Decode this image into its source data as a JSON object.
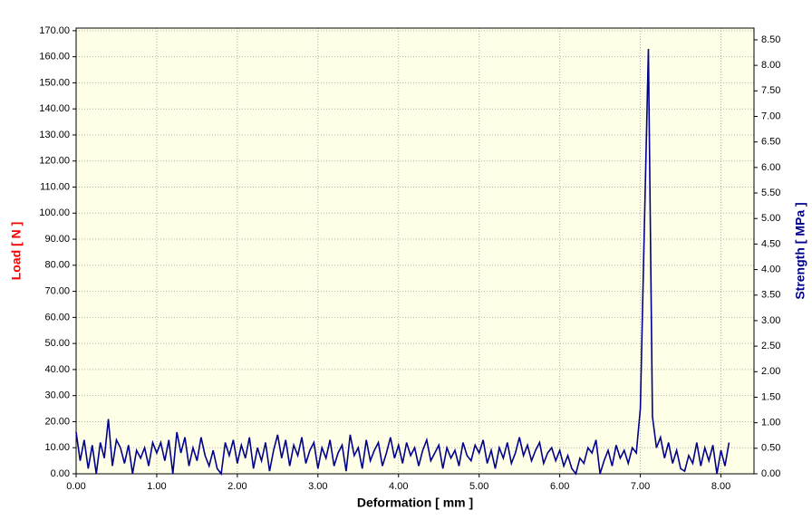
{
  "chart_data": {
    "type": "line",
    "xlabel": "Deformation [ mm ]",
    "ylabel": "Load [ N ]",
    "y2label": "Strength [ MPa ]",
    "color": "#00008b",
    "grid": true,
    "xlim": [
      0,
      8.41
    ],
    "ylim": [
      0,
      171
    ],
    "y2lim": [
      0,
      8.73
    ],
    "xticks": [
      {
        "value": 0,
        "label": "0.00"
      },
      {
        "value": 1,
        "label": "1.00"
      },
      {
        "value": 2,
        "label": "2.00"
      },
      {
        "value": 3,
        "label": "3.00"
      },
      {
        "value": 4,
        "label": "4.00"
      },
      {
        "value": 5,
        "label": "5.00"
      },
      {
        "value": 6,
        "label": "6.00"
      },
      {
        "value": 7,
        "label": "7.00"
      },
      {
        "value": 8,
        "label": "8.00"
      }
    ],
    "yticks": [
      {
        "value": 0,
        "label": "0.00"
      },
      {
        "value": 10,
        "label": "10.00"
      },
      {
        "value": 20,
        "label": "20.00"
      },
      {
        "value": 30,
        "label": "30.00"
      },
      {
        "value": 40,
        "label": "40.00"
      },
      {
        "value": 50,
        "label": "50.00"
      },
      {
        "value": 60,
        "label": "60.00"
      },
      {
        "value": 70,
        "label": "70.00"
      },
      {
        "value": 80,
        "label": "80.00"
      },
      {
        "value": 90,
        "label": "90.00"
      },
      {
        "value": 100,
        "label": "100.00"
      },
      {
        "value": 110,
        "label": "110.00"
      },
      {
        "value": 120,
        "label": "120.00"
      },
      {
        "value": 130,
        "label": "130.00"
      },
      {
        "value": 140,
        "label": "140.00"
      },
      {
        "value": 150,
        "label": "150.00"
      },
      {
        "value": 160,
        "label": "160.00"
      },
      {
        "value": 170,
        "label": "170.00"
      }
    ],
    "y2ticks": [
      {
        "value": 0,
        "label": "0.00"
      },
      {
        "value": 0.5,
        "label": "0.50"
      },
      {
        "value": 1,
        "label": "1.00"
      },
      {
        "value": 1.5,
        "label": "1.50"
      },
      {
        "value": 2,
        "label": "2.00"
      },
      {
        "value": 2.5,
        "label": "2.50"
      },
      {
        "value": 3,
        "label": "3.00"
      },
      {
        "value": 3.5,
        "label": "3.50"
      },
      {
        "value": 4,
        "label": "4.00"
      },
      {
        "value": 4.5,
        "label": "4.50"
      },
      {
        "value": 5,
        "label": "5.00"
      },
      {
        "value": 5.5,
        "label": "5.50"
      },
      {
        "value": 6,
        "label": "6.00"
      },
      {
        "value": 6.5,
        "label": "6.50"
      },
      {
        "value": 7,
        "label": "7.00"
      },
      {
        "value": 7.5,
        "label": "7.50"
      },
      {
        "value": 8,
        "label": "8.00"
      },
      {
        "value": 8.5,
        "label": "8.50"
      }
    ],
    "x": [
      0,
      0.05,
      0.1,
      0.15,
      0.2,
      0.25,
      0.3,
      0.35,
      0.4,
      0.45,
      0.5,
      0.55,
      0.6,
      0.65,
      0.7,
      0.75,
      0.8,
      0.85,
      0.9,
      0.95,
      1,
      1.05,
      1.1,
      1.15,
      1.2,
      1.25,
      1.3,
      1.35,
      1.4,
      1.45,
      1.5,
      1.55,
      1.6,
      1.65,
      1.7,
      1.75,
      1.8,
      1.85,
      1.9,
      1.95,
      2,
      2.05,
      2.1,
      2.15,
      2.2,
      2.25,
      2.3,
      2.35,
      2.4,
      2.45,
      2.5,
      2.55,
      2.6,
      2.65,
      2.7,
      2.75,
      2.8,
      2.85,
      2.9,
      2.95,
      3,
      3.05,
      3.1,
      3.15,
      3.2,
      3.25,
      3.3,
      3.35,
      3.4,
      3.45,
      3.5,
      3.55,
      3.6,
      3.65,
      3.7,
      3.75,
      3.8,
      3.85,
      3.9,
      3.95,
      4,
      4.05,
      4.1,
      4.15,
      4.2,
      4.25,
      4.3,
      4.35,
      4.4,
      4.45,
      4.5,
      4.55,
      4.6,
      4.65,
      4.7,
      4.75,
      4.8,
      4.85,
      4.9,
      4.95,
      5,
      5.05,
      5.1,
      5.15,
      5.2,
      5.25,
      5.3,
      5.35,
      5.4,
      5.45,
      5.5,
      5.55,
      5.6,
      5.65,
      5.7,
      5.75,
      5.8,
      5.85,
      5.9,
      5.95,
      6,
      6.05,
      6.1,
      6.15,
      6.2,
      6.25,
      6.3,
      6.35,
      6.4,
      6.45,
      6.5,
      6.55,
      6.6,
      6.65,
      6.7,
      6.75,
      6.8,
      6.85,
      6.9,
      6.95,
      7,
      7.05,
      7.1,
      7.15,
      7.2,
      7.25,
      7.3,
      7.35,
      7.4,
      7.45,
      7.5,
      7.55,
      7.6,
      7.65,
      7.7,
      7.75,
      7.8,
      7.85,
      7.9,
      7.95,
      8,
      8.05,
      8.1
    ],
    "values": [
      16,
      5,
      13,
      2,
      11,
      0,
      12,
      6,
      21,
      3,
      13,
      10,
      4,
      11,
      0,
      9,
      6,
      10,
      3,
      12,
      8,
      12,
      5,
      13,
      0,
      16,
      8,
      14,
      3,
      10,
      5,
      14,
      7,
      3,
      9,
      2,
      0,
      12,
      7,
      13,
      4,
      11,
      6,
      14,
      2,
      10,
      5,
      12,
      1,
      9,
      15,
      6,
      13,
      3,
      11,
      7,
      14,
      4,
      9,
      12,
      2,
      10,
      6,
      13,
      3,
      8,
      11,
      1,
      15,
      7,
      10,
      2,
      13,
      5,
      9,
      12,
      3,
      8,
      14,
      6,
      11,
      4,
      12,
      7,
      10,
      3,
      9,
      13,
      5,
      8,
      11,
      2,
      10,
      6,
      9,
      3,
      12,
      7,
      5,
      11,
      8,
      13,
      4,
      9,
      2,
      10,
      6,
      12,
      4,
      8,
      14,
      7,
      11,
      5,
      9,
      12,
      4,
      8,
      10,
      5,
      9,
      3,
      7,
      2,
      0,
      6,
      4,
      10,
      8,
      13,
      0,
      5,
      9,
      3,
      11,
      6,
      9,
      4,
      10,
      8,
      25,
      95,
      163,
      22,
      10,
      14,
      6,
      12,
      4,
      9,
      2,
      1,
      7,
      4,
      12,
      3,
      10,
      5,
      11,
      0,
      9,
      3,
      12
    ]
  }
}
